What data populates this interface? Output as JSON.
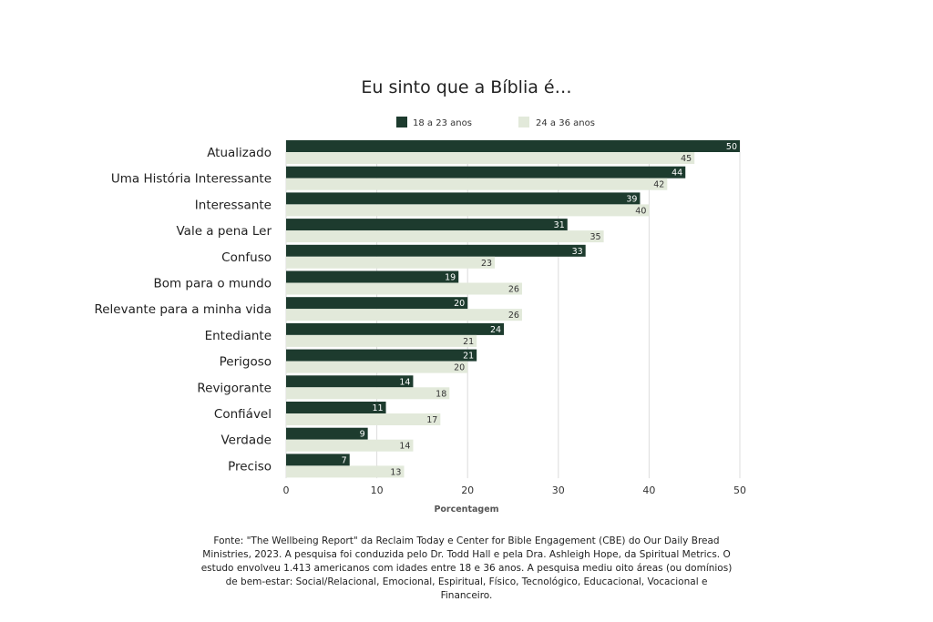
{
  "chart_data": {
    "type": "bar",
    "orientation": "horizontal",
    "title": "Eu sinto que a Bíblia é…",
    "xlabel": "Porcentagem",
    "ylabel": "",
    "xlim": [
      0,
      50
    ],
    "xticks": [
      "0",
      "10",
      "20",
      "30",
      "40",
      "50"
    ],
    "grid": true,
    "legend_position": "top",
    "categories": [
      "Atualizado",
      "Uma História Interessante",
      "Interessante",
      "Vale a pena Ler",
      "Confuso",
      "Bom para o mundo",
      "Relevante para  a minha vida",
      "Entediante",
      "Perigoso",
      "Revigorante",
      "Confiável",
      "Verdade",
      "Preciso"
    ],
    "series": [
      {
        "name": "18 a 23 anos",
        "color": "#1d3b2e",
        "values": [
          50,
          44,
          39,
          31,
          33,
          19,
          20,
          24,
          21,
          14,
          11,
          9,
          7
        ]
      },
      {
        "name": "24 a 36 anos",
        "color": "#e2e9da",
        "values": [
          45,
          42,
          40,
          35,
          23,
          26,
          26,
          21,
          20,
          18,
          17,
          14,
          13
        ]
      }
    ]
  },
  "source_text": "Fonte: \"The Wellbeing Report\" da Reclaim Today e Center for Bible Engagement (CBE) do Our Daily Bread Ministries, 2023. A pesquisa foi conduzida pelo Dr. Todd Hall e pela Dra. Ashleigh Hope, da Spiritual Metrics. O estudo envolveu 1.413 americanos com idades entre 18 e 36 anos. A pesquisa mediu oito áreas (ou domínios) de bem-estar: Social/Relacional, Emocional, Espiritual, Físico, Tecnológico, Educacional, Vocacional e Financeiro."
}
